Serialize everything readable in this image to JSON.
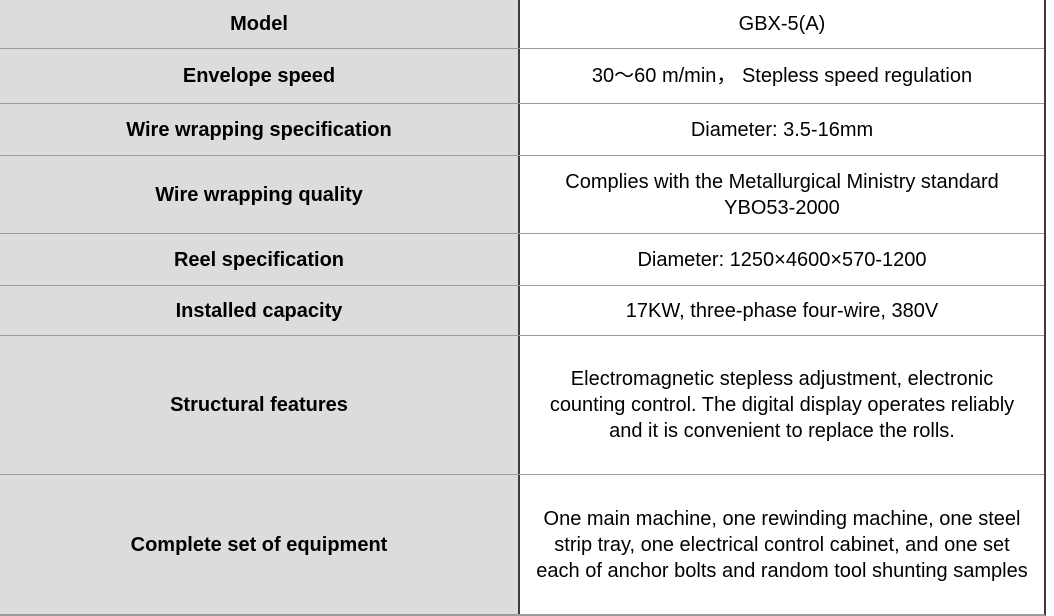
{
  "table": {
    "rows": [
      {
        "label": "Model",
        "value": "GBX-5(A)"
      },
      {
        "label": "Envelope speed",
        "value": "30～60 m/min， Stepless speed regulation"
      },
      {
        "label": "Wire wrapping specification",
        "value": "Diameter: 3.5-16mm"
      },
      {
        "label": "Wire wrapping quality",
        "value": "Complies with the Metallurgical Ministry standard YBO53-2000"
      },
      {
        "label": "Reel specification",
        "value": "Diameter: 1250×4600×570-1200"
      },
      {
        "label": "Installed capacity",
        "value": "17KW, three-phase four-wire, 380V"
      },
      {
        "label": "Structural features",
        "value": "Electromagnetic stepless adjustment, electronic counting control. The digital display operates reliably and it is convenient to replace the rolls."
      },
      {
        "label": "Complete set of equipment",
        "value": "One main machine, one rewinding machine, one steel strip tray, one electrical control cabinet, and one set each of anchor bolts and random tool shunting samples"
      }
    ],
    "colors": {
      "label_bg": "#dcdcdc",
      "value_bg": "#ffffff",
      "row_line": "#9c9c9c",
      "column_divider": "#3d3d3d",
      "text": "#000000"
    }
  }
}
